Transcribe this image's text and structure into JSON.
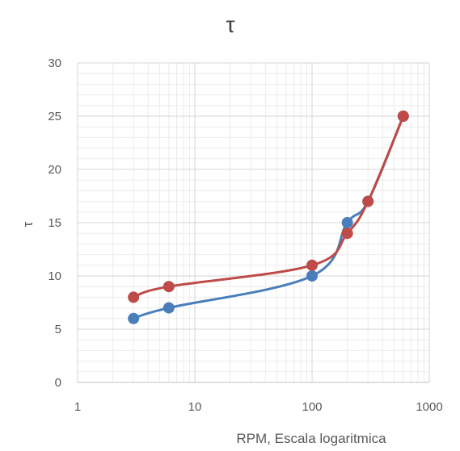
{
  "chart_data": {
    "type": "scatter",
    "title": "τ",
    "xlabel": "RPM, Escala logaritmica",
    "ylabel": "τ",
    "xscale": "log",
    "xlim": [
      1,
      1000
    ],
    "ylim": [
      0,
      30
    ],
    "x_ticks": [
      "1",
      "10",
      "100",
      "1000"
    ],
    "y_ticks": [
      "0",
      "5",
      "10",
      "15",
      "20",
      "25",
      "30"
    ],
    "grid": true,
    "legend": "none",
    "smooth_lines": true,
    "series": [
      {
        "color": "#4a7ebb",
        "x": [
          3,
          6,
          100,
          200,
          300,
          600
        ],
        "y": [
          6,
          7,
          10,
          15,
          17,
          25
        ]
      },
      {
        "color": "#be4b48",
        "x": [
          3,
          6,
          100,
          200,
          300,
          600
        ],
        "y": [
          8,
          9,
          11,
          14,
          17,
          25
        ]
      }
    ]
  }
}
